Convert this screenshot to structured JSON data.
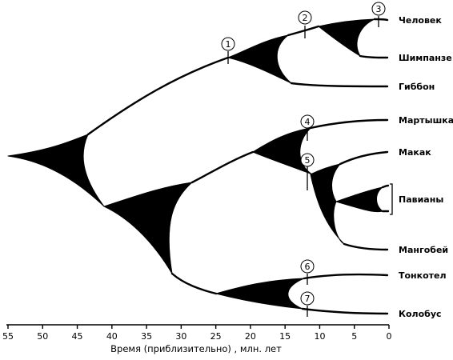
{
  "diagram": {
    "taxa": [
      {
        "id": "human",
        "label": "Человек"
      },
      {
        "id": "chimp",
        "label": "Шимпанзе"
      },
      {
        "id": "gibbon",
        "label": "Гиббон"
      },
      {
        "id": "guenon",
        "label": "Мартышка"
      },
      {
        "id": "macaque",
        "label": "Макак"
      },
      {
        "id": "baboons",
        "label": "Павианы"
      },
      {
        "id": "mangabey",
        "label": "Мангобей"
      },
      {
        "id": "langur",
        "label": "Тонкотел"
      },
      {
        "id": "colobus",
        "label": "Колобус"
      }
    ],
    "markers": [
      {
        "label": "1",
        "time_mya": 24
      },
      {
        "label": "2",
        "time_mya": 12
      },
      {
        "label": "3",
        "time_mya": 1.5
      },
      {
        "label": "4",
        "time_mya": 12
      },
      {
        "label": "5",
        "time_mya": 12
      },
      {
        "label": "6",
        "time_mya": 12
      },
      {
        "label": "7",
        "time_mya": 12
      }
    ],
    "axis": {
      "title": "Время (приблизительно) , млн. лет",
      "ticks": [
        "55",
        "50",
        "45",
        "40",
        "35",
        "30",
        "25",
        "20",
        "15",
        "10",
        "5",
        "0"
      ]
    }
  }
}
